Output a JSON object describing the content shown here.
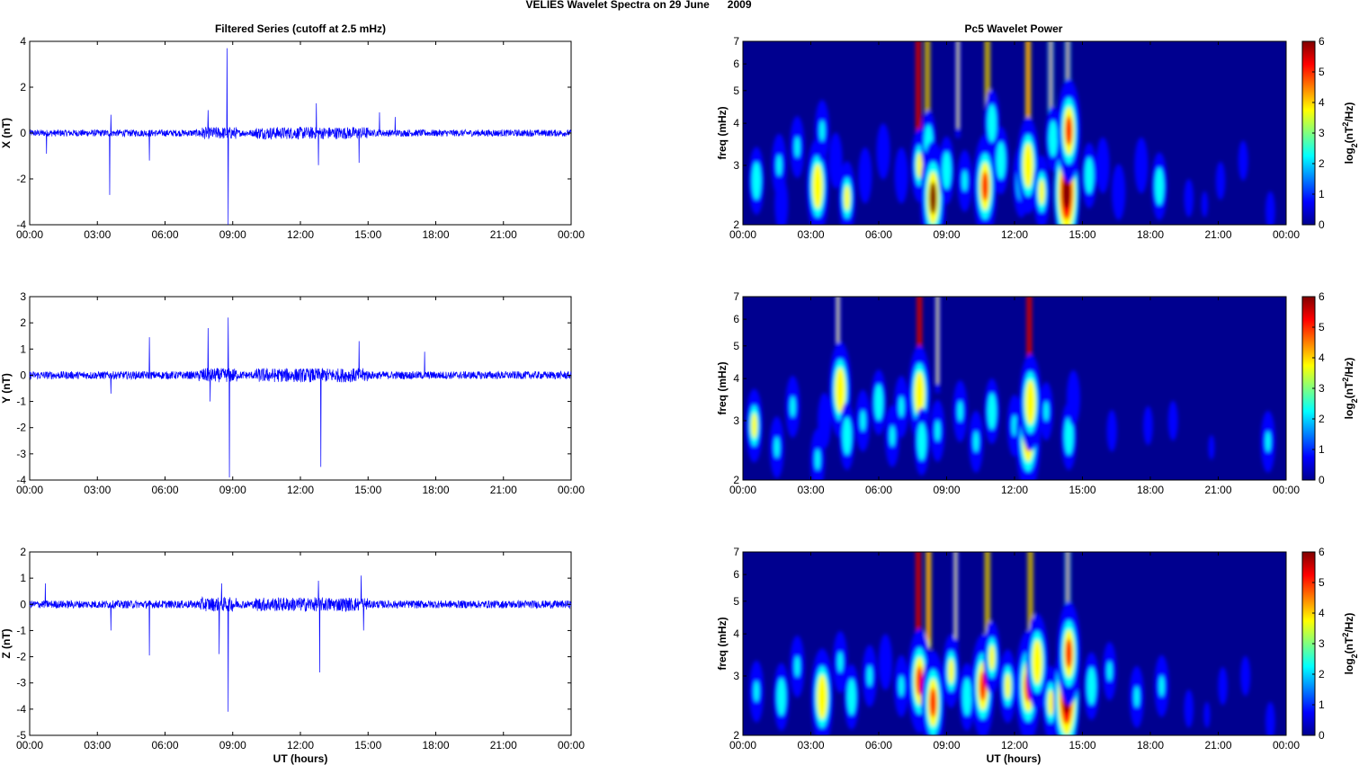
{
  "figure_title": "VELIES Wavelet Spectra on 29 June      2009",
  "left_title": "Filtered Series (cutoff at 2.5 mHz)",
  "right_title": "Pc5 Wavelet Power",
  "xlabel": "UT (hours)",
  "freq_label": "freq (mHz)",
  "colorbar_label": "log2(nT2/Hz)",
  "time_ticks": [
    "00:00",
    "03:00",
    "06:00",
    "09:00",
    "12:00",
    "15:00",
    "18:00",
    "21:00",
    "00:00"
  ],
  "freq_ticks": [
    "2",
    "3",
    "4",
    "5",
    "6",
    "7"
  ],
  "colorbar_ticks": [
    "0",
    "1",
    "2",
    "3",
    "4",
    "5",
    "6"
  ],
  "colors": {
    "series_line": "#0000ff",
    "spectrum_background": "#00008f"
  },
  "chart_data": [
    {
      "type": "line",
      "title": "Filtered Series (cutoff at 2.5 mHz)",
      "ylabel": "X (nT)",
      "xlim": [
        0,
        24
      ],
      "ylim": [
        -4,
        4
      ],
      "yticks": [
        "-4",
        "-2",
        "0",
        "2",
        "4"
      ],
      "grid": false,
      "noise_amplitude": 0.15,
      "spikes": [
        [
          0.75,
          1.5
        ],
        [
          0.75,
          -0.9
        ],
        [
          3.55,
          -2.7
        ],
        [
          3.6,
          0.8
        ],
        [
          5.3,
          -1.2
        ],
        [
          7.9,
          1.0
        ],
        [
          8.75,
          3.7
        ],
        [
          8.8,
          -4.0
        ],
        [
          12.7,
          1.3
        ],
        [
          12.8,
          -1.4
        ],
        [
          14.6,
          2.5
        ],
        [
          14.6,
          -1.3
        ],
        [
          15.5,
          0.9
        ],
        [
          16.2,
          0.7
        ]
      ]
    },
    {
      "type": "line",
      "ylabel": "Y (nT)",
      "xlim": [
        0,
        24
      ],
      "ylim": [
        -4,
        3
      ],
      "yticks": [
        "-4",
        "-3",
        "-2",
        "-1",
        "0",
        "1",
        "2",
        "3"
      ],
      "grid": false,
      "noise_amplitude": 0.15,
      "spikes": [
        [
          3.6,
          1.9
        ],
        [
          3.6,
          -0.7
        ],
        [
          5.3,
          1.45
        ],
        [
          7.9,
          1.8
        ],
        [
          8.0,
          -1.0
        ],
        [
          8.8,
          2.2
        ],
        [
          8.85,
          -3.9
        ],
        [
          12.9,
          1.5
        ],
        [
          12.9,
          -3.5
        ],
        [
          14.6,
          1.3
        ],
        [
          17.5,
          0.9
        ]
      ]
    },
    {
      "type": "line",
      "ylabel": "Z (nT)",
      "xlim": [
        0,
        24
      ],
      "ylim": [
        -5,
        2
      ],
      "yticks": [
        "-5",
        "-4",
        "-3",
        "-2",
        "-1",
        "0",
        "1",
        "2"
      ],
      "grid": false,
      "noise_amplitude": 0.15,
      "spikes": [
        [
          0.7,
          0.8
        ],
        [
          3.6,
          -1.0
        ],
        [
          5.3,
          -1.95
        ],
        [
          8.4,
          -1.9
        ],
        [
          8.5,
          0.8
        ],
        [
          8.8,
          -4.1
        ],
        [
          12.8,
          0.9
        ],
        [
          12.85,
          -2.6
        ],
        [
          14.7,
          1.1
        ],
        [
          14.8,
          -1.0
        ]
      ]
    },
    {
      "type": "heatmap",
      "title": "Pc5 Wavelet Power",
      "ylabel": "freq (mHz)",
      "xlim": [
        0,
        24
      ],
      "ylim": [
        2,
        7
      ],
      "yscale": "log",
      "clim": [
        0,
        6
      ],
      "colorbar_label": "log2(nT2/Hz)",
      "blobs": [
        [
          0.6,
          2.7,
          3
        ],
        [
          1.6,
          3,
          2.6
        ],
        [
          1.7,
          2.3,
          2
        ],
        [
          2.4,
          3.4,
          2.5
        ],
        [
          3.3,
          2.6,
          4
        ],
        [
          3.5,
          3.8,
          2.5
        ],
        [
          4.1,
          3.1,
          2
        ],
        [
          4.6,
          2.4,
          3.5
        ],
        [
          5.4,
          2.8,
          2
        ],
        [
          6.2,
          3.3,
          2
        ],
        [
          7.0,
          2.8,
          2
        ],
        [
          7.8,
          3,
          3.5
        ],
        [
          8.2,
          3.5,
          2.8
        ],
        [
          8.4,
          2.4,
          5.2
        ],
        [
          9.0,
          2.9,
          3
        ],
        [
          9.8,
          2.7,
          2.5
        ],
        [
          10.7,
          2.6,
          4.5
        ],
        [
          11.0,
          4,
          3
        ],
        [
          11.4,
          3.1,
          3
        ],
        [
          12.3,
          2.7,
          3.5
        ],
        [
          12.6,
          3,
          4
        ],
        [
          13.2,
          2.5,
          3.5
        ],
        [
          13.7,
          3.6,
          2.8
        ],
        [
          14.3,
          2.5,
          5.5
        ],
        [
          14.4,
          3.8,
          4.5
        ],
        [
          15.3,
          2.8,
          2.8
        ],
        [
          15.9,
          3,
          2
        ],
        [
          16.6,
          2.5,
          2
        ],
        [
          17.6,
          3,
          2
        ],
        [
          18.4,
          2.6,
          3
        ],
        [
          19.7,
          2.4,
          1.4
        ],
        [
          20.4,
          2.3,
          1.2
        ],
        [
          21.1,
          2.7,
          1.4
        ],
        [
          22.1,
          3.1,
          1.6
        ],
        [
          23.3,
          2.2,
          1.5
        ]
      ],
      "streaks": [
        [
          7.75,
          6.5
        ],
        [
          8.15,
          5.2
        ],
        [
          10.8,
          5.5
        ],
        [
          12.6,
          5
        ],
        [
          14.35,
          4.2
        ],
        [
          13.6,
          4.5
        ],
        [
          9.5,
          3.5
        ]
      ]
    },
    {
      "type": "heatmap",
      "ylabel": "freq (mHz)",
      "xlim": [
        0,
        24
      ],
      "ylim": [
        2,
        7
      ],
      "yscale": "log",
      "clim": [
        0,
        6
      ],
      "colorbar_label": "log2(nT2/Hz)",
      "blobs": [
        [
          0.5,
          2.9,
          3.5
        ],
        [
          1.5,
          2.5,
          2.5
        ],
        [
          2.2,
          3.3,
          2.5
        ],
        [
          3.3,
          2.3,
          2.5
        ],
        [
          3.6,
          3,
          2
        ],
        [
          4.3,
          3.7,
          4
        ],
        [
          4.6,
          2.7,
          3
        ],
        [
          5.3,
          3,
          2.5
        ],
        [
          6.0,
          3.4,
          2.8
        ],
        [
          6.6,
          2.7,
          2.5
        ],
        [
          7.0,
          3.3,
          2.5
        ],
        [
          7.8,
          3.6,
          4
        ],
        [
          7.9,
          2.6,
          3
        ],
        [
          8.6,
          2.8,
          2.5
        ],
        [
          9.6,
          3.2,
          2.5
        ],
        [
          10.3,
          2.6,
          2.5
        ],
        [
          11.0,
          3.2,
          2.8
        ],
        [
          12.0,
          2.9,
          2.5
        ],
        [
          12.6,
          2.7,
          5
        ],
        [
          12.7,
          3.4,
          4
        ],
        [
          13.4,
          3.2,
          2.2
        ],
        [
          14.4,
          2.7,
          3
        ],
        [
          14.6,
          3.5,
          2
        ],
        [
          16.3,
          2.8,
          1.8
        ],
        [
          17.9,
          2.9,
          1.5
        ],
        [
          19.0,
          3,
          1.6
        ],
        [
          20.7,
          2.5,
          1
        ],
        [
          23.2,
          2.6,
          2.5
        ]
      ],
      "streaks": [
        [
          7.8,
          6
        ],
        [
          12.65,
          6.5
        ],
        [
          4.2,
          3.5
        ],
        [
          8.6,
          3.5
        ]
      ]
    },
    {
      "type": "heatmap",
      "ylabel": "freq (mHz)",
      "xlim": [
        0,
        24
      ],
      "ylim": [
        2,
        7
      ],
      "yscale": "log",
      "clim": [
        0,
        6
      ],
      "colorbar_label": "log2(nT2/Hz)",
      "blobs": [
        [
          0.6,
          2.7,
          2.5
        ],
        [
          1.7,
          2.6,
          3
        ],
        [
          2.4,
          3.2,
          2.5
        ],
        [
          3.5,
          2.6,
          4
        ],
        [
          4.3,
          3.3,
          2.5
        ],
        [
          4.8,
          2.6,
          2.8
        ],
        [
          5.6,
          3,
          2.5
        ],
        [
          6.3,
          3.3,
          2
        ],
        [
          7.0,
          2.8,
          2.5
        ],
        [
          7.8,
          2.9,
          4.5
        ],
        [
          8.4,
          2.5,
          4.5
        ],
        [
          9.2,
          3.1,
          3.5
        ],
        [
          9.9,
          2.6,
          3
        ],
        [
          10.6,
          2.8,
          4.5
        ],
        [
          11.0,
          3.4,
          3.5
        ],
        [
          11.7,
          2.8,
          3.5
        ],
        [
          12.6,
          2.8,
          5
        ],
        [
          13.0,
          3.3,
          4
        ],
        [
          13.6,
          2.5,
          3.5
        ],
        [
          14.3,
          2.6,
          5.5
        ],
        [
          14.4,
          3.5,
          4.5
        ],
        [
          15.4,
          2.8,
          3
        ],
        [
          16.2,
          3.1,
          2.2
        ],
        [
          17.4,
          2.6,
          2.5
        ],
        [
          18.5,
          2.8,
          2.5
        ],
        [
          19.7,
          2.4,
          1.4
        ],
        [
          20.5,
          2.3,
          1.2
        ],
        [
          21.2,
          2.8,
          1.4
        ],
        [
          22.2,
          3,
          1.6
        ],
        [
          23.3,
          2.2,
          1.5
        ]
      ],
      "streaks": [
        [
          7.75,
          5.8
        ],
        [
          8.2,
          5
        ],
        [
          10.8,
          5.5
        ],
        [
          12.7,
          5.2
        ],
        [
          14.35,
          4.2
        ],
        [
          9.4,
          3.5
        ]
      ]
    }
  ]
}
